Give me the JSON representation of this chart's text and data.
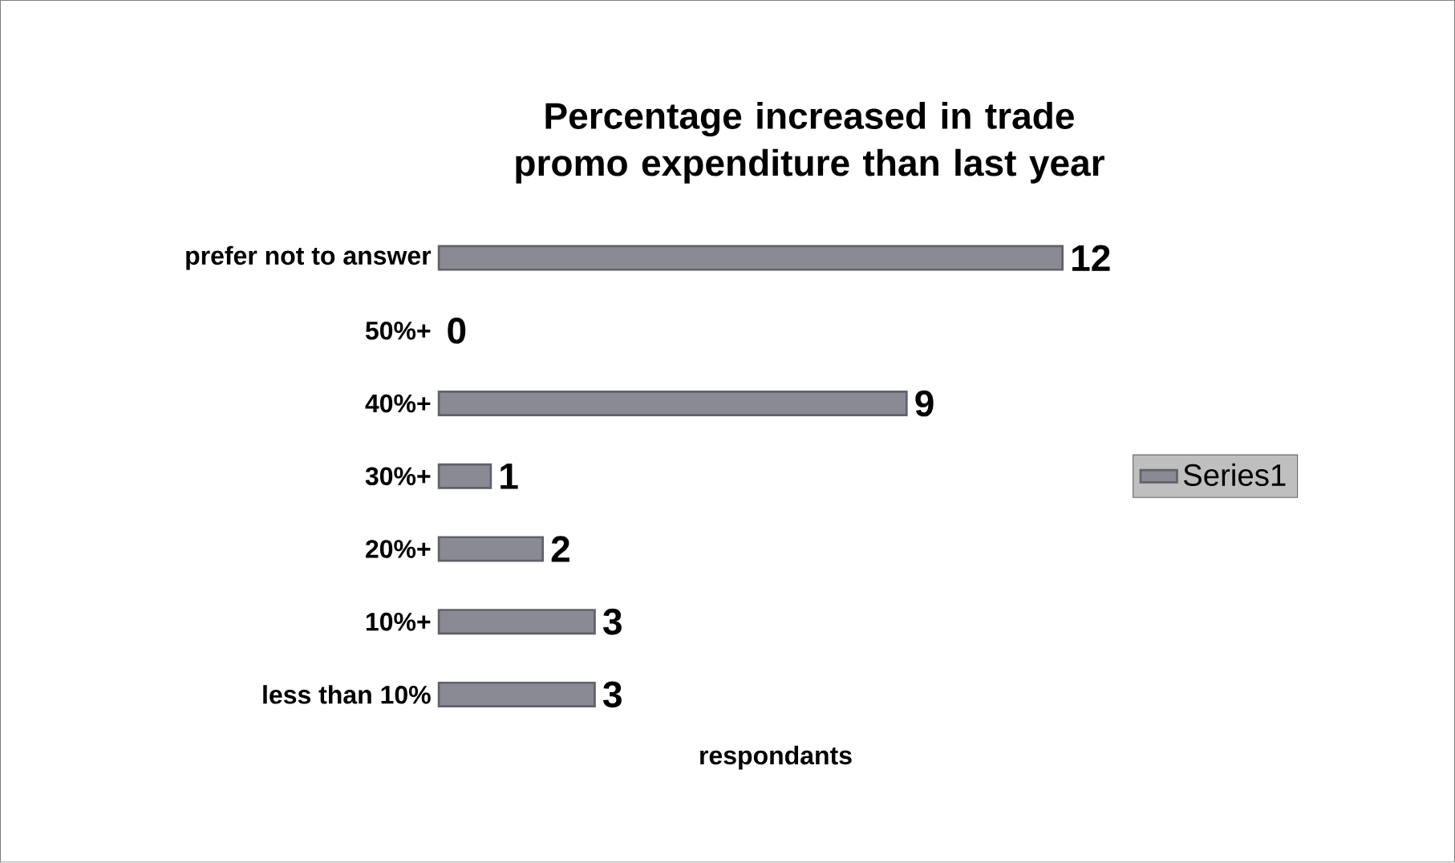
{
  "chart_data": {
    "type": "bar",
    "orientation": "horizontal",
    "title": "Percentage increased in trade promo expenditure than last year",
    "xlabel": "respondants",
    "categories": [
      "prefer not to answer",
      "50%+",
      "40%+",
      "30%+",
      "20%+",
      "10%+",
      "less than 10%"
    ],
    "series": [
      {
        "name": "Series1",
        "color": "#8a8a94",
        "values": [
          12,
          0,
          9,
          1,
          2,
          3,
          3
        ]
      }
    ],
    "relative": false,
    "data_labels": true,
    "legend": "right"
  }
}
